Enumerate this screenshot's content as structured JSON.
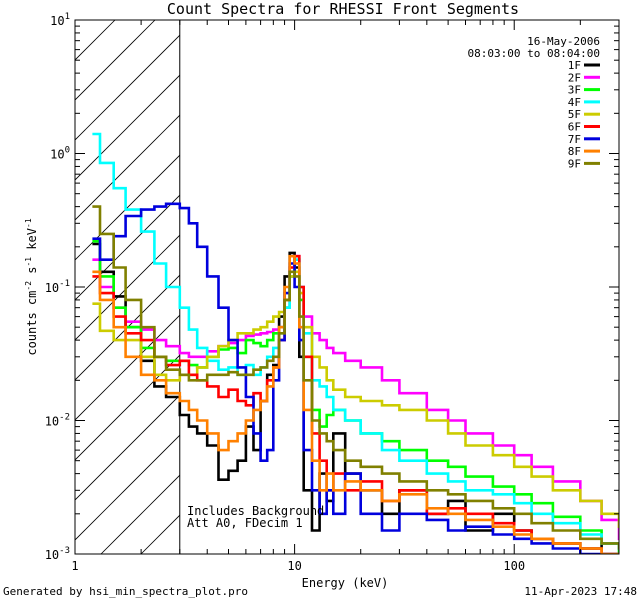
{
  "chart_data": {
    "type": "line",
    "title": "Count Spectra for RHESSI Front Segments",
    "xlabel": "Energy (keV)",
    "ylabel": "counts cm-2 s-1 keV-1",
    "ylabel_parts": {
      "base": "counts cm",
      "e1": "-2",
      "mid": " s",
      "e2": "-1",
      "end": " keV",
      "e3": "-1"
    },
    "xscale": "log",
    "yscale": "log",
    "xlim": [
      1,
      300
    ],
    "ylim": [
      0.001,
      10
    ],
    "x_ticks": [
      {
        "value": 1,
        "label": "1"
      },
      {
        "value": 10,
        "label": "10"
      },
      {
        "value": 100,
        "label": "100"
      }
    ],
    "y_ticks": [
      {
        "value": 0.001,
        "base": "10",
        "exp": "-3"
      },
      {
        "value": 0.01,
        "base": "10",
        "exp": "-2"
      },
      {
        "value": 0.1,
        "base": "10",
        "exp": "-1"
      },
      {
        "value": 1,
        "base": "10",
        "exp": "0"
      },
      {
        "value": 10,
        "base": "10",
        "exp": "1"
      }
    ],
    "date": "16-May-2006",
    "time_range": "08:03:00 to 08:04:00",
    "annotation_lines": [
      "Includes Background",
      "Att A0, FDecim 1"
    ],
    "attenuator_region": {
      "x_from": 1,
      "x_to": 3,
      "fill": "hatched"
    },
    "legend_position": "top-right",
    "footer_left": "Generated by hsi_min_spectra_plot.pro",
    "footer_right": "11-Apr-2023 17:48",
    "series": [
      {
        "name": "1F",
        "color": "#000000",
        "x": [
          1.2,
          1.3,
          1.5,
          1.7,
          2,
          2.3,
          2.6,
          3,
          3.3,
          3.6,
          4,
          4.5,
          5,
          5.5,
          6,
          6.5,
          7,
          7.5,
          8,
          8.5,
          9,
          9.5,
          10,
          10.5,
          11,
          12,
          13,
          14,
          15,
          17,
          20,
          25,
          30,
          40,
          50,
          60,
          80,
          100,
          120,
          150,
          200,
          250,
          300
        ],
        "y": [
          0.21,
          0.13,
          0.085,
          0.05,
          0.028,
          0.018,
          0.015,
          0.011,
          0.009,
          0.008,
          0.0065,
          0.0036,
          0.0042,
          0.005,
          0.009,
          0.006,
          0.014,
          0.022,
          0.026,
          0.06,
          0.12,
          0.18,
          0.14,
          0.03,
          0.003,
          0.0015,
          0.004,
          0.0025,
          0.008,
          0.004,
          0.003,
          0.002,
          0.003,
          0.002,
          0.0025,
          0.0015,
          0.002,
          0.0015,
          0.0013,
          0.0012,
          0.0011,
          0.0012,
          0.0012
        ]
      },
      {
        "name": "2F",
        "color": "#ff00ff",
        "x": [
          1.2,
          1.3,
          1.5,
          1.7,
          2,
          2.3,
          2.6,
          3,
          3.3,
          3.6,
          4,
          4.5,
          5,
          5.5,
          6,
          6.5,
          7,
          7.5,
          8,
          8.5,
          9,
          9.5,
          10,
          10.5,
          11,
          12,
          13,
          14,
          15,
          17,
          20,
          25,
          30,
          40,
          50,
          60,
          80,
          100,
          120,
          150,
          200,
          250,
          300
        ],
        "y": [
          0.16,
          0.1,
          0.07,
          0.055,
          0.048,
          0.04,
          0.036,
          0.032,
          0.03,
          0.03,
          0.033,
          0.036,
          0.038,
          0.04,
          0.043,
          0.044,
          0.045,
          0.046,
          0.048,
          0.05,
          0.07,
          0.12,
          0.17,
          0.1,
          0.06,
          0.045,
          0.04,
          0.035,
          0.032,
          0.028,
          0.025,
          0.02,
          0.016,
          0.012,
          0.01,
          0.008,
          0.0065,
          0.0055,
          0.0045,
          0.0035,
          0.0025,
          0.0018,
          0.0013
        ]
      },
      {
        "name": "3F",
        "color": "#00ff00",
        "x": [
          1.2,
          1.3,
          1.5,
          1.7,
          2,
          2.3,
          2.6,
          3,
          3.3,
          3.6,
          4,
          4.5,
          5,
          5.5,
          6,
          6.5,
          7,
          7.5,
          8,
          8.5,
          9,
          9.5,
          10,
          10.5,
          11,
          12,
          13,
          14,
          15,
          17,
          20,
          25,
          30,
          40,
          50,
          60,
          80,
          100,
          120,
          150,
          200,
          250,
          300
        ],
        "y": [
          0.22,
          0.12,
          0.07,
          0.05,
          0.035,
          0.03,
          0.028,
          0.028,
          0.026,
          0.025,
          0.03,
          0.034,
          0.035,
          0.032,
          0.04,
          0.038,
          0.036,
          0.04,
          0.045,
          0.05,
          0.07,
          0.12,
          0.16,
          0.08,
          0.03,
          0.012,
          0.009,
          0.011,
          0.012,
          0.01,
          0.008,
          0.007,
          0.006,
          0.005,
          0.0045,
          0.0038,
          0.0032,
          0.0028,
          0.0024,
          0.0019,
          0.0015,
          0.0012,
          0.001
        ]
      },
      {
        "name": "4F",
        "color": "#00ffff",
        "x": [
          1.2,
          1.3,
          1.5,
          1.7,
          2,
          2.3,
          2.6,
          3,
          3.3,
          3.6,
          4,
          4.5,
          5,
          5.5,
          6,
          6.5,
          7,
          7.5,
          8,
          8.5,
          9,
          9.5,
          10,
          10.5,
          11,
          12,
          13,
          14,
          15,
          17,
          20,
          25,
          30,
          40,
          50,
          60,
          80,
          100,
          120,
          150,
          200,
          250,
          300
        ],
        "y": [
          1.4,
          0.85,
          0.55,
          0.38,
          0.26,
          0.15,
          0.1,
          0.07,
          0.048,
          0.035,
          0.028,
          0.024,
          0.025,
          0.022,
          0.026,
          0.022,
          0.025,
          0.03,
          0.035,
          0.045,
          0.07,
          0.12,
          0.16,
          0.1,
          0.045,
          0.02,
          0.018,
          0.015,
          0.012,
          0.01,
          0.008,
          0.006,
          0.005,
          0.004,
          0.0035,
          0.003,
          0.0028,
          0.0024,
          0.002,
          0.0017,
          0.0014,
          0.0012,
          0.0011
        ]
      },
      {
        "name": "5F",
        "color": "#cccc00",
        "x": [
          1.2,
          1.3,
          1.5,
          1.7,
          2,
          2.3,
          2.6,
          3,
          3.3,
          3.6,
          4,
          4.5,
          5,
          5.5,
          6,
          6.5,
          7,
          7.5,
          8,
          8.5,
          9,
          9.5,
          10,
          10.5,
          11,
          12,
          13,
          14,
          15,
          17,
          20,
          25,
          30,
          40,
          50,
          60,
          80,
          100,
          120,
          150,
          200,
          250,
          300
        ],
        "y": [
          0.075,
          0.047,
          0.04,
          0.04,
          0.03,
          0.022,
          0.02,
          0.022,
          0.022,
          0.025,
          0.03,
          0.036,
          0.04,
          0.045,
          0.045,
          0.048,
          0.05,
          0.055,
          0.06,
          0.065,
          0.08,
          0.12,
          0.13,
          0.09,
          0.05,
          0.03,
          0.025,
          0.02,
          0.017,
          0.015,
          0.014,
          0.013,
          0.012,
          0.01,
          0.008,
          0.0065,
          0.0055,
          0.0045,
          0.0038,
          0.003,
          0.0025,
          0.002,
          0.0016
        ]
      },
      {
        "name": "6F",
        "color": "#ff0000",
        "x": [
          1.2,
          1.3,
          1.5,
          1.7,
          2,
          2.3,
          2.6,
          3,
          3.3,
          3.6,
          4,
          4.5,
          5,
          5.5,
          6,
          6.5,
          7,
          7.5,
          8,
          8.5,
          9,
          9.5,
          10,
          10.5,
          11,
          12,
          13,
          14,
          15,
          17,
          20,
          25,
          30,
          40,
          50,
          60,
          80,
          100,
          120,
          150,
          200,
          250,
          300
        ],
        "y": [
          0.12,
          0.09,
          0.06,
          0.045,
          0.04,
          0.03,
          0.026,
          0.028,
          0.022,
          0.02,
          0.018,
          0.015,
          0.017,
          0.014,
          0.013,
          0.016,
          0.014,
          0.02,
          0.025,
          0.04,
          0.08,
          0.14,
          0.17,
          0.1,
          0.03,
          0.008,
          0.005,
          0.003,
          0.004,
          0.003,
          0.0035,
          0.0025,
          0.003,
          0.002,
          0.0022,
          0.002,
          0.0017,
          0.0015,
          0.0013,
          0.0012,
          0.0011,
          0.001,
          0.001
        ]
      },
      {
        "name": "7F",
        "color": "#0000dd",
        "x": [
          1.2,
          1.3,
          1.5,
          1.7,
          2,
          2.3,
          2.6,
          3,
          3.3,
          3.6,
          4,
          4.5,
          5,
          5.5,
          6,
          6.5,
          7,
          7.5,
          8,
          8.5,
          9,
          9.5,
          10,
          10.5,
          11,
          12,
          13,
          14,
          15,
          17,
          20,
          25,
          30,
          40,
          50,
          60,
          80,
          100,
          120,
          150,
          200,
          250,
          300
        ],
        "y": [
          0.23,
          0.16,
          0.24,
          0.34,
          0.38,
          0.4,
          0.42,
          0.39,
          0.3,
          0.2,
          0.12,
          0.07,
          0.04,
          0.025,
          0.015,
          0.008,
          0.005,
          0.006,
          0.02,
          0.04,
          0.09,
          0.15,
          0.1,
          0.04,
          0.006,
          0.003,
          0.002,
          0.003,
          0.002,
          0.004,
          0.002,
          0.0015,
          0.002,
          0.0018,
          0.0015,
          0.0016,
          0.0014,
          0.0013,
          0.0012,
          0.0011,
          0.001,
          0.001,
          0.001
        ]
      },
      {
        "name": "8F",
        "color": "#ff8000",
        "x": [
          1.2,
          1.3,
          1.5,
          1.7,
          2,
          2.3,
          2.6,
          3,
          3.3,
          3.6,
          4,
          4.5,
          5,
          5.5,
          6,
          6.5,
          7,
          7.5,
          8,
          8.5,
          9,
          9.5,
          10,
          10.5,
          11,
          12,
          13,
          14,
          15,
          17,
          20,
          25,
          30,
          40,
          50,
          60,
          80,
          100,
          120,
          150,
          200,
          250,
          300
        ],
        "y": [
          0.13,
          0.08,
          0.05,
          0.03,
          0.022,
          0.02,
          0.016,
          0.014,
          0.012,
          0.01,
          0.008,
          0.006,
          0.007,
          0.008,
          0.01,
          0.012,
          0.014,
          0.018,
          0.025,
          0.05,
          0.1,
          0.17,
          0.15,
          0.05,
          0.012,
          0.005,
          0.003,
          0.004,
          0.003,
          0.0035,
          0.003,
          0.0025,
          0.0028,
          0.0022,
          0.002,
          0.0018,
          0.0016,
          0.0014,
          0.0013,
          0.0012,
          0.0011,
          0.001,
          0.001
        ]
      },
      {
        "name": "9F",
        "color": "#808000",
        "x": [
          1.2,
          1.3,
          1.5,
          1.7,
          2,
          2.3,
          2.6,
          3,
          3.3,
          3.6,
          4,
          4.5,
          5,
          5.5,
          6,
          6.5,
          7,
          7.5,
          8,
          8.5,
          9,
          9.5,
          10,
          10.5,
          11,
          12,
          13,
          14,
          15,
          17,
          20,
          25,
          30,
          40,
          50,
          60,
          80,
          100,
          120,
          150,
          200,
          250,
          300
        ],
        "y": [
          0.4,
          0.25,
          0.14,
          0.08,
          0.05,
          0.03,
          0.024,
          0.022,
          0.02,
          0.02,
          0.022,
          0.022,
          0.023,
          0.022,
          0.022,
          0.024,
          0.025,
          0.028,
          0.03,
          0.045,
          0.08,
          0.13,
          0.12,
          0.06,
          0.02,
          0.01,
          0.008,
          0.007,
          0.006,
          0.005,
          0.0045,
          0.004,
          0.0035,
          0.003,
          0.0028,
          0.0025,
          0.0022,
          0.002,
          0.0017,
          0.0015,
          0.0013,
          0.0012,
          0.0011
        ]
      }
    ]
  }
}
